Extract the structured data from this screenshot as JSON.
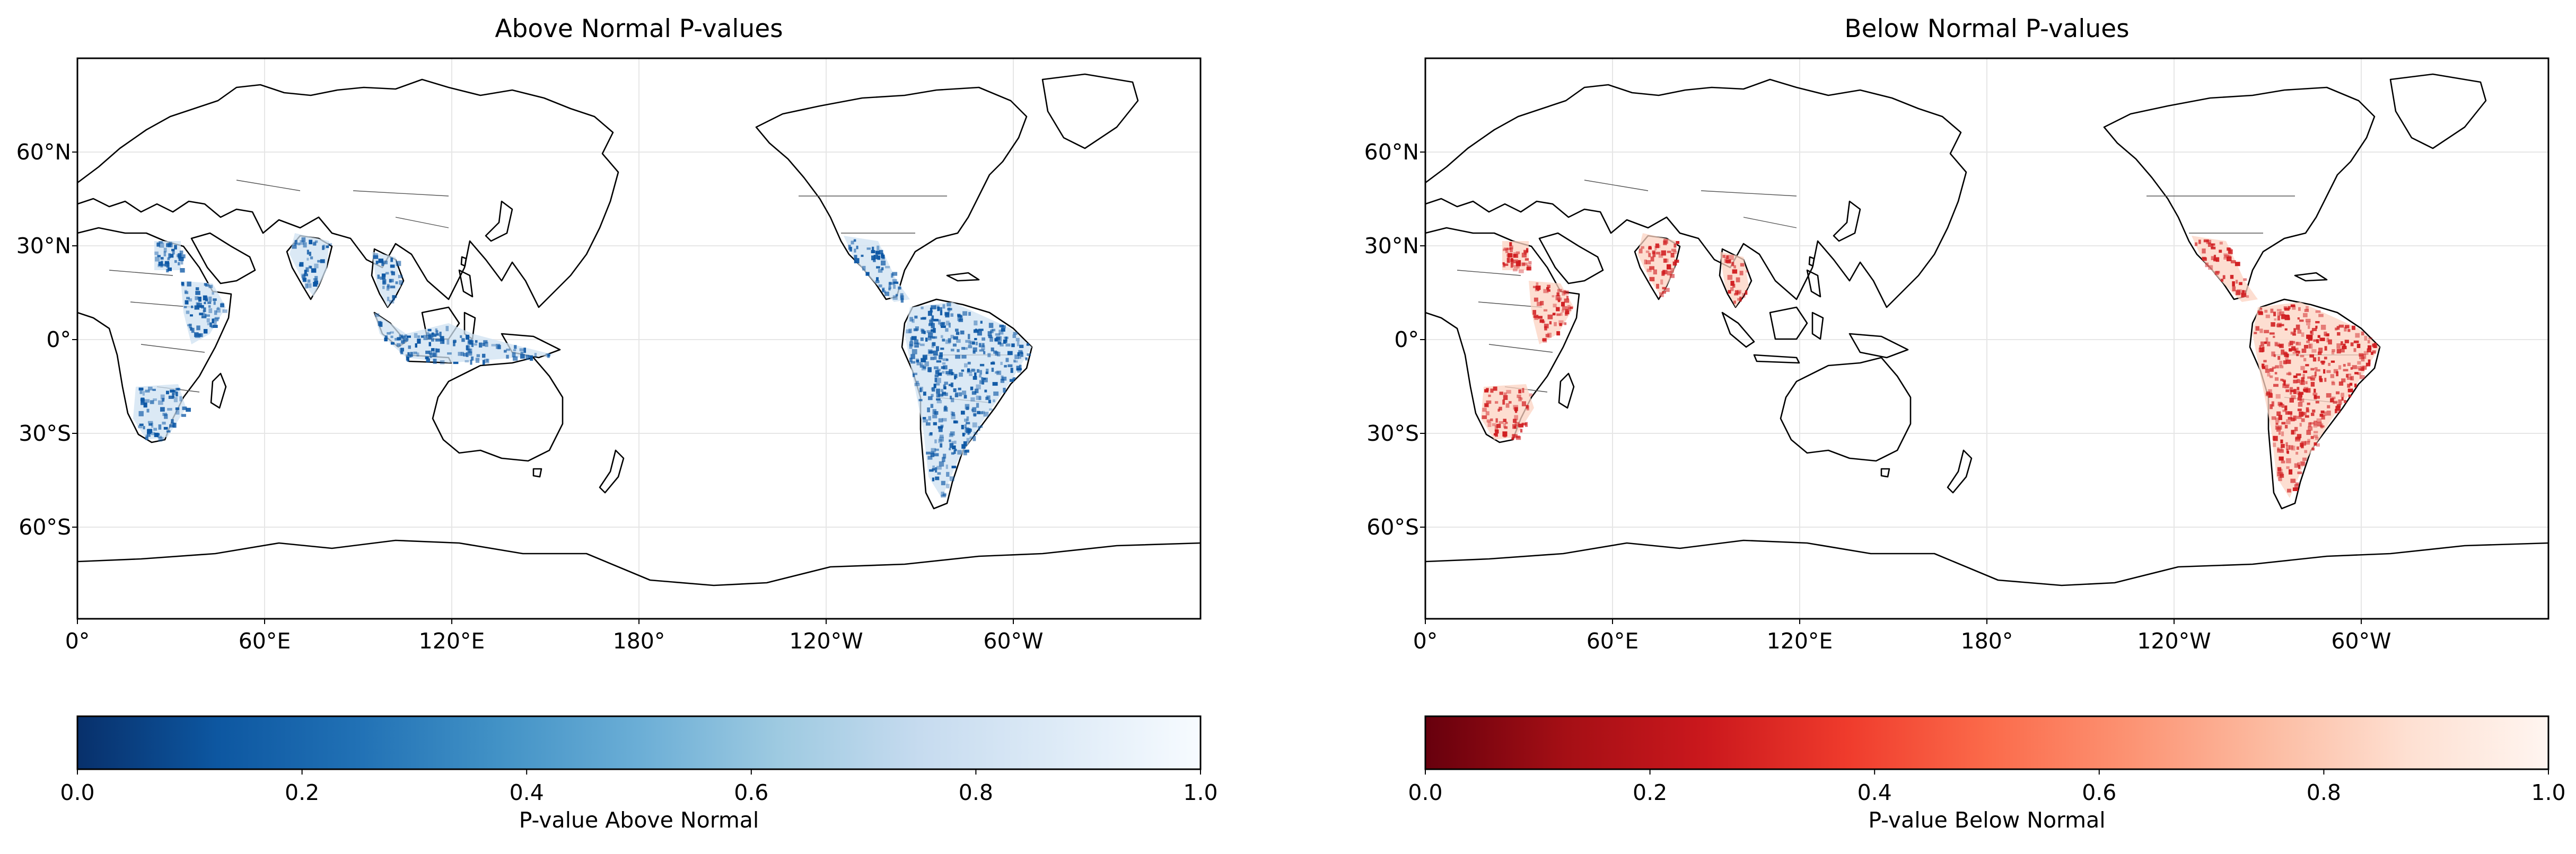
{
  "figure": {
    "panels": [
      {
        "id": "above",
        "title": "Above Normal P-values",
        "shade_color": "#0b56a4",
        "light_color": "#cfe1f2",
        "lon_ticks": [
          "0°",
          "60°E",
          "120°E",
          "180°",
          "120°W",
          "60°W"
        ],
        "lat_ticks": [
          "60°N",
          "30°N",
          "0°",
          "30°S",
          "60°S"
        ],
        "colorbar": {
          "label": "P-value Above Normal",
          "colormap": "Blues_r",
          "stops": [
            "#08306b",
            "#0d57a1",
            "#2171b5",
            "#4292c6",
            "#6baed6",
            "#9ecae1",
            "#c6dbef",
            "#deebf7",
            "#f7fbff"
          ],
          "ticks": [
            "0.0",
            "0.2",
            "0.4",
            "0.6",
            "0.8",
            "1.0"
          ],
          "range": [
            0.0,
            1.0
          ]
        },
        "shaded_regions": [
          "Northeast Africa",
          "Horn of Africa",
          "Southern Africa",
          "India",
          "Southeast Asia",
          "Maritime Continent",
          "Mexico & Central America",
          "South America"
        ]
      },
      {
        "id": "below",
        "title": "Below Normal P-values",
        "shade_color": "#d01c1f",
        "light_color": "#fcd3c1",
        "lon_ticks": [
          "0°",
          "60°E",
          "120°E",
          "180°",
          "120°W",
          "60°W"
        ],
        "lat_ticks": [
          "60°N",
          "30°N",
          "0°",
          "30°S",
          "60°S"
        ],
        "colorbar": {
          "label": "P-value Below Normal",
          "colormap": "Reds_r",
          "stops": [
            "#67000d",
            "#a50f15",
            "#cb181d",
            "#ef3b2c",
            "#fb6a4a",
            "#fc9272",
            "#fcbba1",
            "#fee0d2",
            "#fff5f0"
          ],
          "ticks": [
            "0.0",
            "0.2",
            "0.4",
            "0.6",
            "0.8",
            "1.0"
          ],
          "range": [
            0.0,
            1.0
          ]
        },
        "shaded_regions": [
          "Northeast Africa",
          "Horn of Africa",
          "Southern Africa",
          "India",
          "Southeast Asia",
          "Mexico & Central America",
          "South America"
        ]
      }
    ]
  }
}
